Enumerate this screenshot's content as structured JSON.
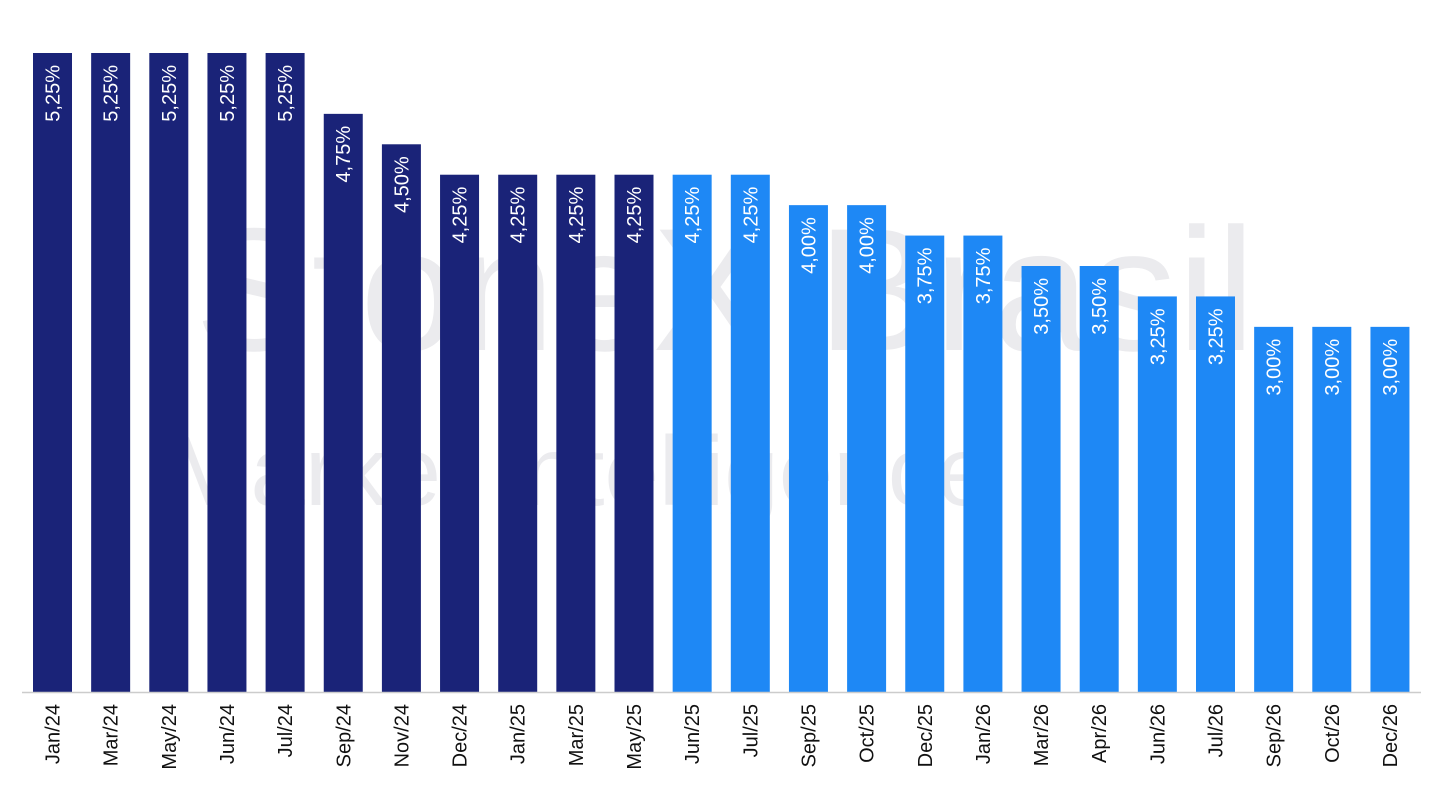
{
  "watermark": {
    "line1": "StoneX Brasil",
    "line2": "Market Intelligence"
  },
  "colors": {
    "historical": "#1a2378",
    "forecast": "#1e88f5",
    "label": "#ffffff",
    "axis_text": "#111111",
    "axis_line": "#cccccc",
    "watermark": "#e9e9ec"
  },
  "chart_data": {
    "type": "bar",
    "title": "",
    "xlabel": "",
    "ylabel": "",
    "ylim": [
      0,
      5.25
    ],
    "grid": false,
    "categories": [
      "Jan/24",
      "Mar/24",
      "May/24",
      "Jun/24",
      "Jul/24",
      "Sep/24",
      "Nov/24",
      "Dec/24",
      "Jan/25",
      "Mar/25",
      "May/25",
      "Jun/25",
      "Jul/25",
      "Sep/25",
      "Oct/25",
      "Dec/25",
      "Jan/26",
      "Mar/26",
      "Apr/26",
      "Jun/26",
      "Jul/26",
      "Sep/26",
      "Oct/26",
      "Dec/26"
    ],
    "values": [
      5.25,
      5.25,
      5.25,
      5.25,
      5.25,
      4.75,
      4.5,
      4.25,
      4.25,
      4.25,
      4.25,
      4.25,
      4.25,
      4.0,
      4.0,
      3.75,
      3.75,
      3.5,
      3.5,
      3.25,
      3.25,
      3.0,
      3.0,
      3.0
    ],
    "labels": [
      "5,25%",
      "5,25%",
      "5,25%",
      "5,25%",
      "5,25%",
      "4,75%",
      "4,50%",
      "4,25%",
      "4,25%",
      "4,25%",
      "4,25%",
      "4,25%",
      "4,25%",
      "4,00%",
      "4,00%",
      "3,75%",
      "3,75%",
      "3,50%",
      "3,50%",
      "3,25%",
      "3,25%",
      "3,00%",
      "3,00%",
      "3,00%"
    ],
    "series_kind": [
      "historical",
      "historical",
      "historical",
      "historical",
      "historical",
      "historical",
      "historical",
      "historical",
      "historical",
      "historical",
      "historical",
      "forecast",
      "forecast",
      "forecast",
      "forecast",
      "forecast",
      "forecast",
      "forecast",
      "forecast",
      "forecast",
      "forecast",
      "forecast",
      "forecast",
      "forecast"
    ]
  }
}
